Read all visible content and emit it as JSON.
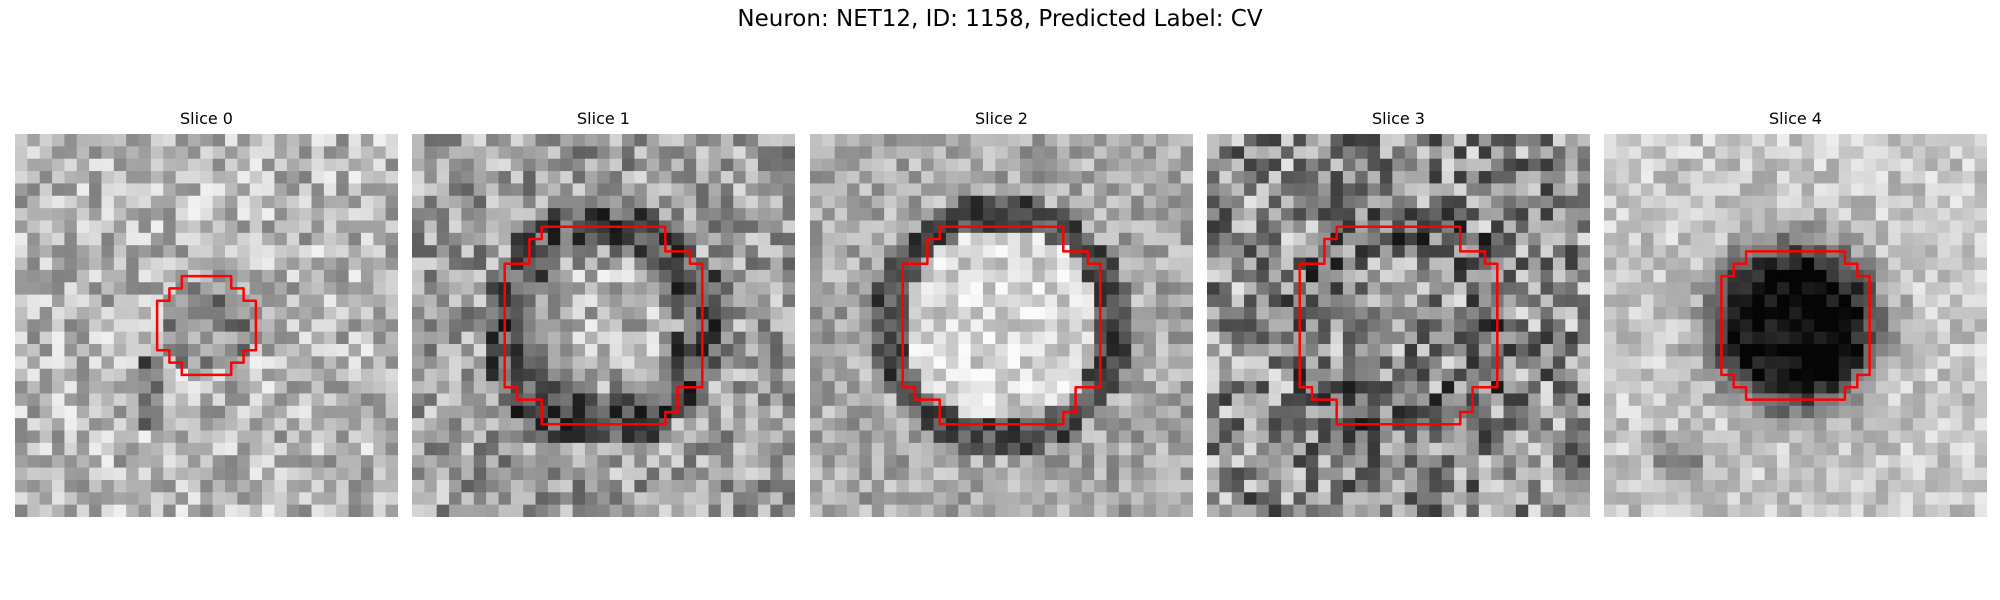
{
  "title": "Neuron: NET12, ID: 1158, Predicted Label: CV",
  "slices": [
    {
      "label": "Slice 0",
      "style": "cell",
      "contour": "small"
    },
    {
      "label": "Slice 1",
      "style": "ring",
      "contour": "large"
    },
    {
      "label": "Slice 2",
      "style": "bright",
      "contour": "large"
    },
    {
      "label": "Slice 3",
      "style": "noisy",
      "contour": "large"
    },
    {
      "label": "Slice 4",
      "style": "darkblob",
      "contour": "medium"
    }
  ],
  "colors": {
    "contour": "#ff0000",
    "background": "#ffffff"
  }
}
